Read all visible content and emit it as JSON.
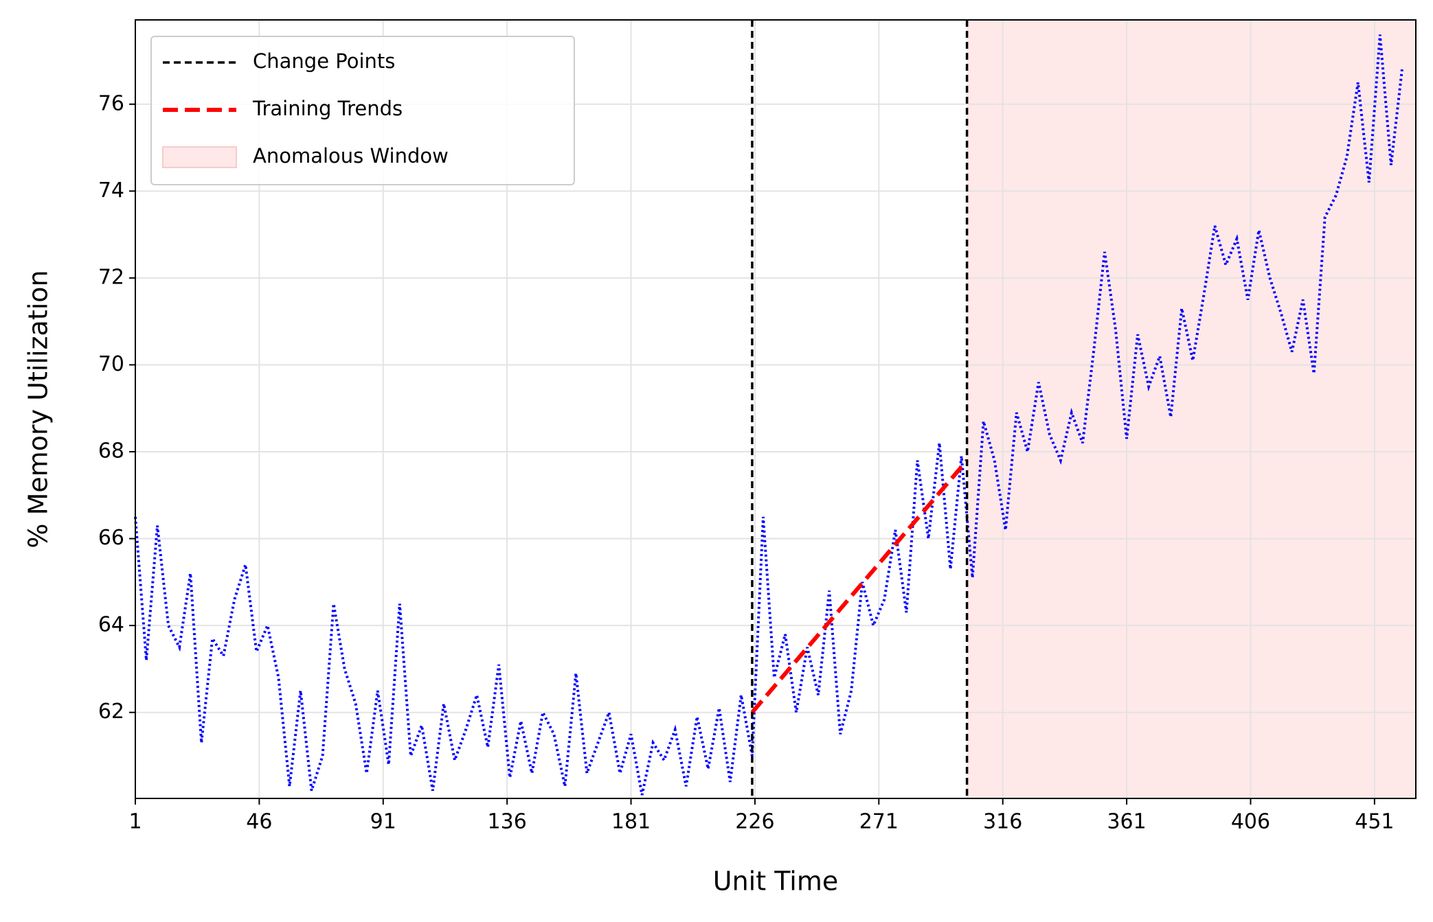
{
  "chart_data": {
    "type": "line",
    "x_label": "Unit Time",
    "y_label": "% Memory Utilization",
    "xlim": [
      1,
      466
    ],
    "ylim": [
      60.02,
      77.94
    ],
    "xticks": [
      1,
      46,
      91,
      136,
      181,
      226,
      271,
      316,
      361,
      406,
      451
    ],
    "yticks": [
      62,
      64,
      66,
      68,
      70,
      72,
      74,
      76
    ],
    "grid": true,
    "legend": "upper left",
    "x": [
      1,
      5,
      9,
      13,
      17,
      21,
      25,
      29,
      33,
      37,
      41,
      45,
      49,
      53,
      57,
      61,
      65,
      69,
      73,
      77,
      81,
      85,
      89,
      93,
      97,
      101,
      105,
      109,
      113,
      117,
      121,
      125,
      129,
      133,
      137,
      141,
      145,
      149,
      153,
      157,
      161,
      165,
      169,
      173,
      177,
      181,
      185,
      189,
      193,
      197,
      201,
      205,
      209,
      213,
      217,
      221,
      225,
      229,
      233,
      237,
      241,
      245,
      249,
      253,
      257,
      261,
      265,
      269,
      273,
      277,
      281,
      285,
      289,
      293,
      297,
      301,
      305,
      309,
      313,
      317,
      321,
      325,
      329,
      333,
      337,
      341,
      345,
      349,
      353,
      357,
      361,
      365,
      369,
      373,
      377,
      381,
      385,
      389,
      393,
      397,
      401,
      405,
      409,
      413,
      417,
      421,
      425,
      429,
      433,
      437,
      441,
      445,
      449,
      453,
      457,
      461
    ],
    "series": [
      {
        "color": "#0000ff",
        "values": [
          66.5,
          63.2,
          66.3,
          64.0,
          63.5,
          65.2,
          61.3,
          63.7,
          63.3,
          64.6,
          65.4,
          63.4,
          64.0,
          62.8,
          60.3,
          62.5,
          60.2,
          61.0,
          64.5,
          63.0,
          62.2,
          60.6,
          62.5,
          60.8,
          64.5,
          61.0,
          61.7,
          60.2,
          62.2,
          60.9,
          61.6,
          62.4,
          61.2,
          63.1,
          60.5,
          61.8,
          60.6,
          62.0,
          61.5,
          60.3,
          62.9,
          60.6,
          61.3,
          62.0,
          60.6,
          61.5,
          60.1,
          61.3,
          60.9,
          61.6,
          60.3,
          61.9,
          60.7,
          62.1,
          60.4,
          62.4,
          61.0,
          66.5,
          62.8,
          63.8,
          62.0,
          63.5,
          62.4,
          64.8,
          61.5,
          62.5,
          65.0,
          64.0,
          64.6,
          66.2,
          64.3,
          67.8,
          66.0,
          68.2,
          65.3,
          67.9,
          65.1,
          68.7,
          67.8,
          66.2,
          68.9,
          68.0,
          69.6,
          68.4,
          67.8,
          68.9,
          68.2,
          70.3,
          72.6,
          70.8,
          68.3,
          70.7,
          69.5,
          70.2,
          68.8,
          71.3,
          70.1,
          71.6,
          73.2,
          72.3,
          72.9,
          71.5,
          73.1,
          72.0,
          71.2,
          70.3,
          71.5,
          69.8,
          73.4,
          73.9,
          74.8,
          76.5,
          74.2,
          77.6,
          74.6,
          76.8
        ]
      }
    ],
    "change_points": {
      "name": "Change Points",
      "color": "#000000",
      "x": [
        225,
        303
      ]
    },
    "training_trends": {
      "name": "Training Trends",
      "color": "#ff0000",
      "x": [
        225,
        303
      ],
      "values": [
        62,
        67.8
      ]
    },
    "anomalous_window": {
      "name": "Anomalous Window",
      "color": "#ffe8e8",
      "x": [
        303,
        466
      ]
    }
  }
}
